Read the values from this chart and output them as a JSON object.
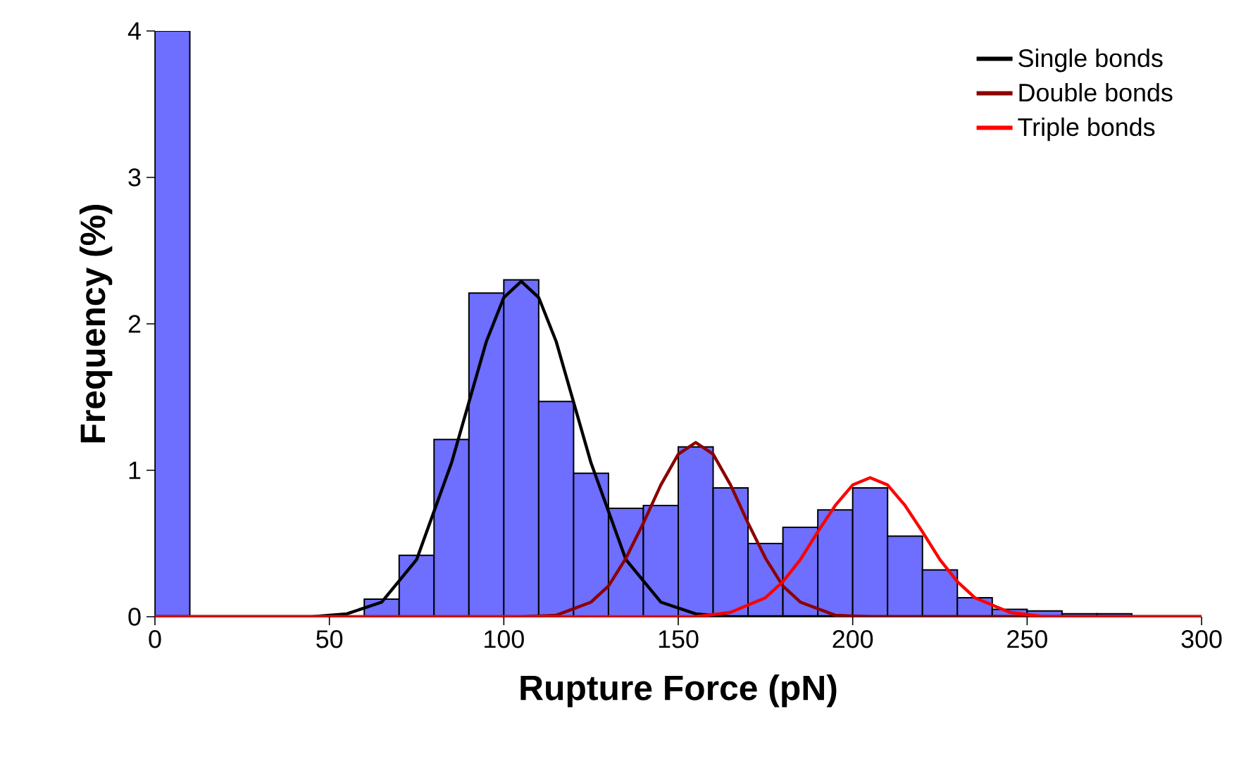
{
  "chart_data": {
    "type": "histogram",
    "xlabel": "Rupture Force (pN)",
    "ylabel": "Frequency (%)",
    "bins": [
      0,
      10,
      20,
      30,
      40,
      50,
      60,
      70,
      80,
      90,
      100,
      110,
      120,
      130,
      140,
      150,
      160,
      170,
      180,
      190,
      200,
      210,
      220,
      230,
      240,
      250,
      260,
      270,
      280
    ],
    "values": [
      4,
      0,
      0,
      0,
      0,
      null,
      0.12,
      0.42,
      1.21,
      2.21,
      2.3,
      1.47,
      0.98,
      0.74,
      0.76,
      1.16,
      0.88,
      0.5,
      0.61,
      0.73,
      0.88,
      0.55,
      0.32,
      0.13,
      0.05,
      0.04,
      0.02,
      0.02
    ],
    "color": "#6e6eff",
    "series": [
      {
        "name": "Single bonds",
        "type": "line",
        "color": "#000000",
        "x": [
          0,
          45,
          55,
          65,
          75,
          85,
          95,
          100,
          105,
          110,
          115,
          125,
          135,
          145,
          155,
          165,
          300
        ],
        "values": [
          0,
          0,
          0.02,
          0.1,
          0.39,
          1.05,
          1.88,
          2.18,
          2.29,
          2.18,
          1.88,
          1.05,
          0.39,
          0.1,
          0.02,
          0,
          0
        ]
      },
      {
        "name": "Double bonds",
        "type": "line",
        "color": "#8b0000",
        "x": [
          0,
          105,
          115,
          125,
          130,
          135,
          140,
          145,
          150,
          155,
          160,
          165,
          170,
          175,
          180,
          185,
          195,
          205,
          300
        ],
        "values": [
          0,
          0,
          0.01,
          0.1,
          0.21,
          0.4,
          0.64,
          0.9,
          1.11,
          1.19,
          1.11,
          0.9,
          0.64,
          0.4,
          0.21,
          0.1,
          0.01,
          0,
          0
        ]
      },
      {
        "name": "Triple bonds",
        "type": "line",
        "color": "#ff0000",
        "x": [
          0,
          155,
          165,
          175,
          180,
          185,
          190,
          195,
          200,
          205,
          210,
          215,
          220,
          225,
          230,
          235,
          245,
          255,
          300
        ],
        "values": [
          0,
          0,
          0.03,
          0.13,
          0.24,
          0.39,
          0.58,
          0.76,
          0.9,
          0.95,
          0.9,
          0.76,
          0.58,
          0.39,
          0.24,
          0.13,
          0.03,
          0,
          0
        ]
      }
    ],
    "xlim": [
      0,
      300
    ],
    "ylim": [
      0,
      4
    ],
    "xticks": [
      0,
      50,
      100,
      150,
      200,
      250,
      300
    ],
    "yticks": [
      0,
      1,
      2,
      3,
      4
    ],
    "grid": false,
    "legend": "top right",
    "line_style": "solid"
  }
}
